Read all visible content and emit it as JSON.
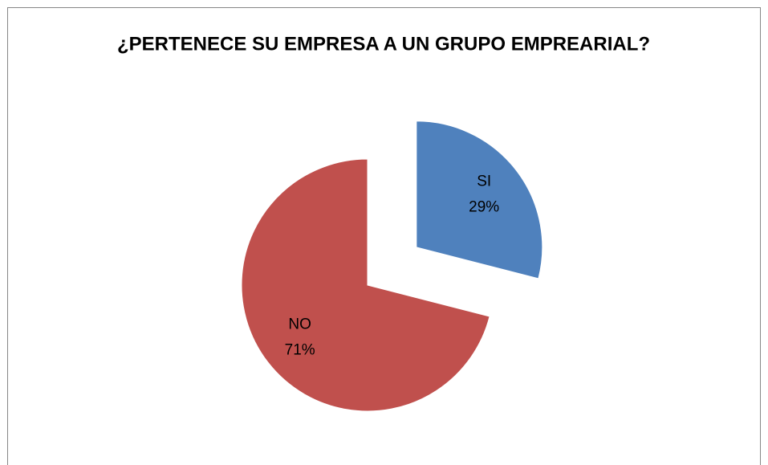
{
  "chart_data": {
    "type": "pie",
    "title": "¿PERTENECE SU EMPRESA A UN GRUPO EMPREARIAL?",
    "categories": [
      "SI",
      "NO"
    ],
    "values": [
      29,
      71
    ],
    "value_labels": [
      "29%",
      "71%"
    ],
    "colors": [
      "#4f81bd",
      "#c0504d"
    ]
  }
}
